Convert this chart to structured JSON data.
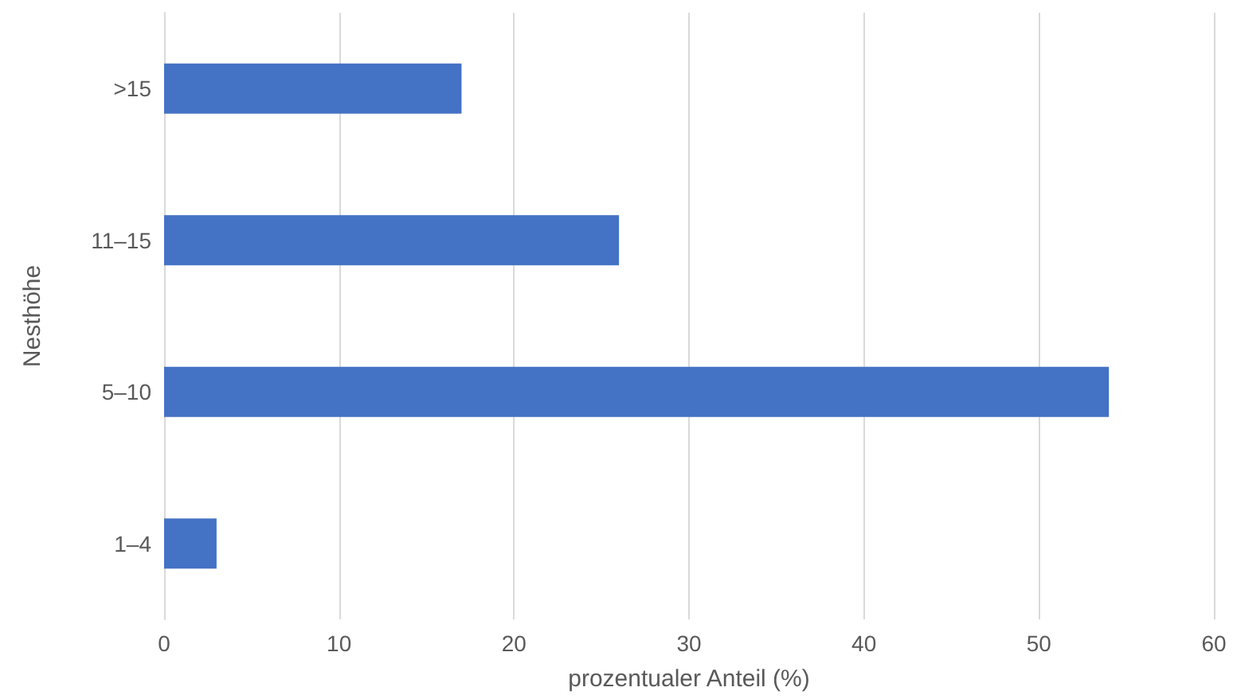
{
  "chart_data": {
    "type": "bar",
    "orientation": "horizontal",
    "xlabel": "prozentualer Anteil (%)",
    "ylabel": "Nesthöhe",
    "categories": [
      ">15",
      "11–15",
      "5–10",
      "1–4"
    ],
    "values": [
      17,
      26,
      54,
      3
    ],
    "color": "#4472c4",
    "xlim": [
      0,
      60
    ],
    "xticks": [
      0,
      10,
      20,
      30,
      40,
      50,
      60
    ],
    "grid": "x"
  }
}
